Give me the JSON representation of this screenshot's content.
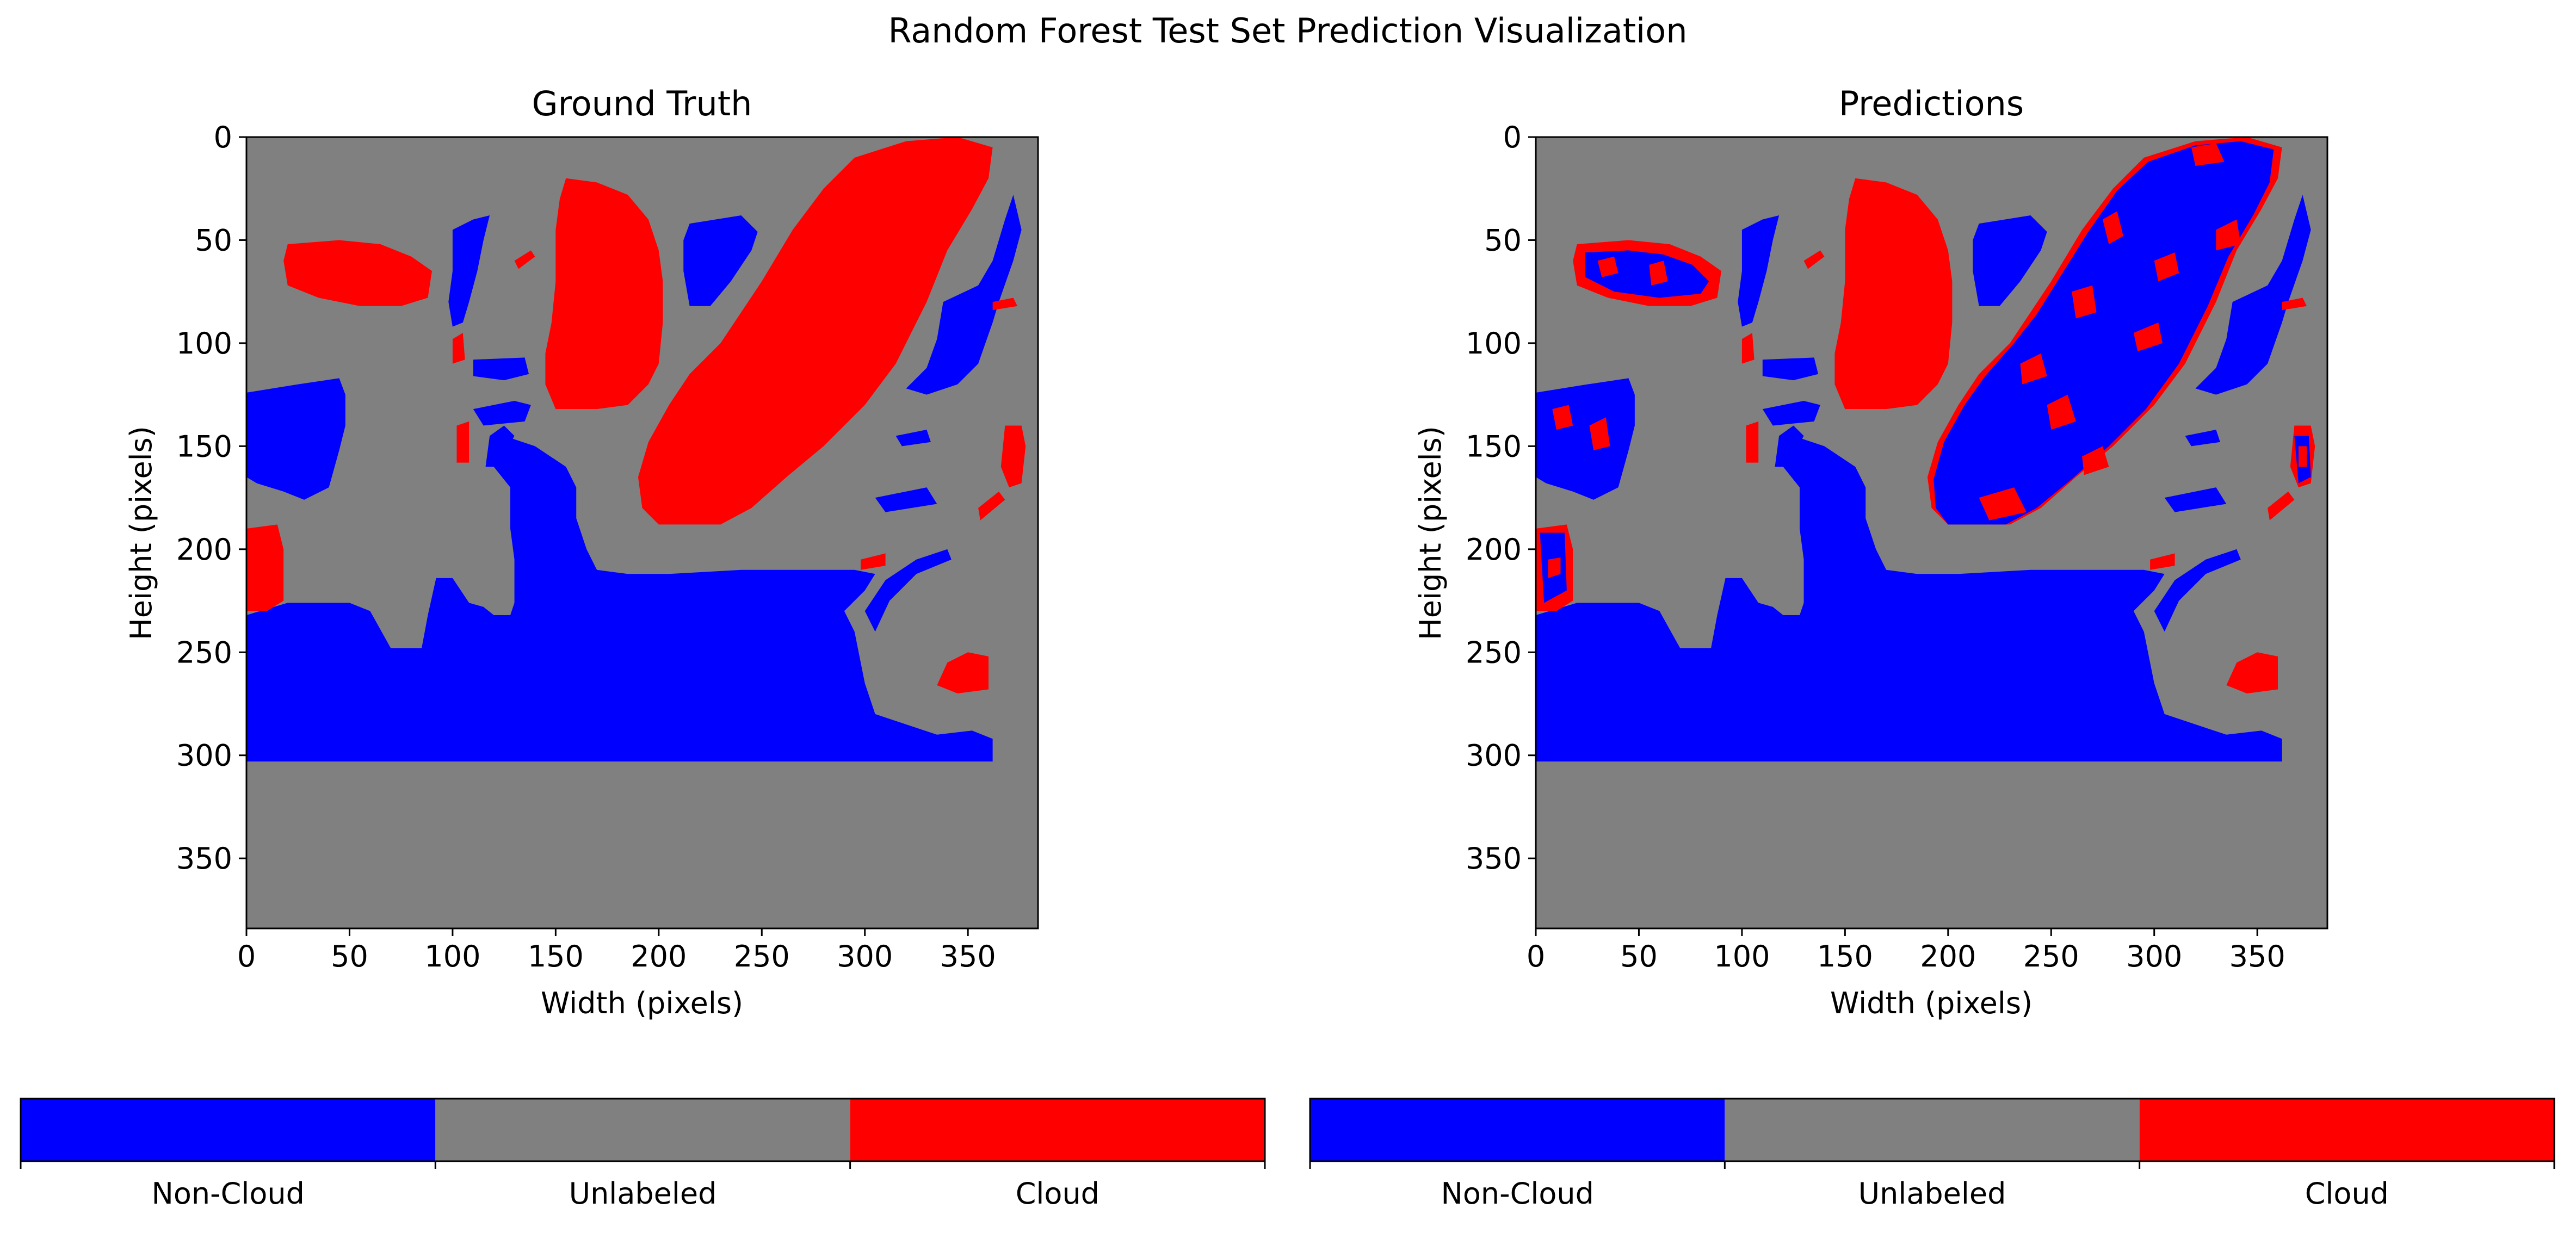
{
  "figure_title": "Random Forest Test Set Prediction Visualization",
  "colors": {
    "non_cloud": "#0000ff",
    "unlabeled": "#808080",
    "cloud": "#ff0000"
  },
  "chart_data": [
    {
      "type": "heatmap",
      "title": "Ground Truth",
      "xlabel": "Width (pixels)",
      "ylabel": "Height (pixels)",
      "xlim": [
        0,
        384
      ],
      "ylim": [
        384,
        0
      ],
      "xticks": [
        0,
        50,
        100,
        150,
        200,
        250,
        300,
        350
      ],
      "yticks": [
        0,
        50,
        100,
        150,
        200,
        250,
        300,
        350
      ],
      "legend": [
        "Non-Cloud",
        "Unlabeled",
        "Cloud"
      ]
    },
    {
      "type": "heatmap",
      "title": "Predictions",
      "xlabel": "Width (pixels)",
      "ylabel": "Height (pixels)",
      "xlim": [
        0,
        384
      ],
      "ylim": [
        384,
        0
      ],
      "xticks": [
        0,
        50,
        100,
        150,
        200,
        250,
        300,
        350
      ],
      "yticks": [
        0,
        50,
        100,
        150,
        200,
        250,
        300,
        350
      ],
      "legend": [
        "Non-Cloud",
        "Unlabeled",
        "Cloud"
      ]
    }
  ]
}
